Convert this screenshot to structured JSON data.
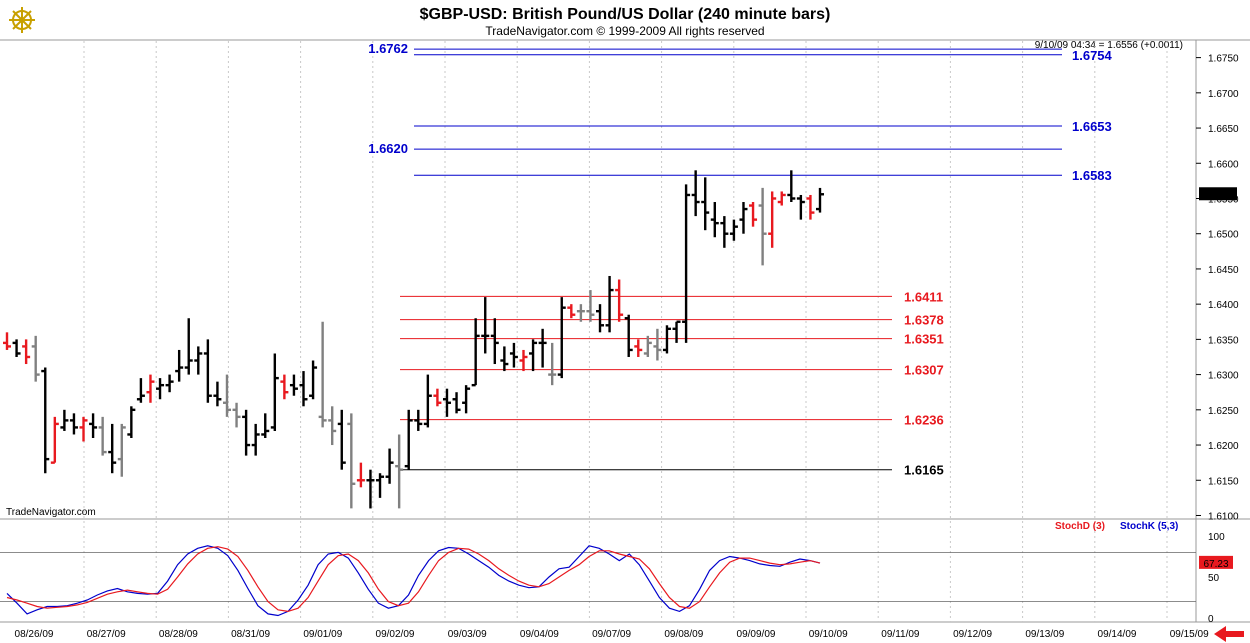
{
  "header": {
    "title": "$GBP-USD:  British Pound/US Dollar  (240 minute bars)",
    "subtitle": "TradeNavigator.com © 1999-2009 All rights reserved"
  },
  "readout": "9/10/09 04:34 = 1.6556 (+0.0011)",
  "watermark": "TradeNavigator.com",
  "logo_icon": "ship-wheel-icon",
  "scroll_icon": "arrow-left-icon",
  "colors": {
    "up_bar": "#000000",
    "down_bar": "#e8191f",
    "neutral_bar": "#808080",
    "blue_level": "#0000cc",
    "red_level": "#e8191f",
    "stoch_d": "#e8191f",
    "stoch_k": "#0000cc",
    "grid": "#c8c8c8"
  },
  "chart_data": [
    {
      "type": "ohlc",
      "x_axis_dates": [
        "08/26/09",
        "08/27/09",
        "08/28/09",
        "08/31/09",
        "09/01/09",
        "09/02/09",
        "09/03/09",
        "09/04/09",
        "09/07/09",
        "09/08/09",
        "09/09/09",
        "09/10/09",
        "09/11/09",
        "09/12/09",
        "09/13/09",
        "09/14/09",
        "09/15/09"
      ],
      "ylim": [
        1.6095,
        1.6775
      ],
      "y_ticks": [
        1.61,
        1.615,
        1.62,
        1.625,
        1.63,
        1.635,
        1.64,
        1.645,
        1.65,
        1.655,
        1.66,
        1.665,
        1.67,
        1.675
      ],
      "last_price": "1.6556",
      "bars": [
        {
          "o": 1.6345,
          "h": 1.636,
          "l": 1.6335,
          "c": 1.634,
          "col": "r"
        },
        {
          "o": 1.6345,
          "h": 1.635,
          "l": 1.6325,
          "c": 1.633,
          "col": "k"
        },
        {
          "o": 1.634,
          "h": 1.635,
          "l": 1.6315,
          "c": 1.6325,
          "col": "r"
        },
        {
          "o": 1.634,
          "h": 1.6355,
          "l": 1.629,
          "c": 1.63,
          "col": "g"
        },
        {
          "o": 1.6305,
          "h": 1.631,
          "l": 1.616,
          "c": 1.618,
          "col": "k"
        },
        {
          "o": 1.6175,
          "h": 1.624,
          "l": 1.6175,
          "c": 1.623,
          "col": "r"
        },
        {
          "o": 1.6225,
          "h": 1.625,
          "l": 1.622,
          "c": 1.6235,
          "col": "k"
        },
        {
          "o": 1.6235,
          "h": 1.6245,
          "l": 1.6215,
          "c": 1.6225,
          "col": "k"
        },
        {
          "o": 1.6225,
          "h": 1.624,
          "l": 1.6205,
          "c": 1.6235,
          "col": "r"
        },
        {
          "o": 1.623,
          "h": 1.6245,
          "l": 1.621,
          "c": 1.6225,
          "col": "k"
        },
        {
          "o": 1.6225,
          "h": 1.624,
          "l": 1.6185,
          "c": 1.619,
          "col": "g"
        },
        {
          "o": 1.619,
          "h": 1.623,
          "l": 1.616,
          "c": 1.6175,
          "col": "k"
        },
        {
          "o": 1.618,
          "h": 1.623,
          "l": 1.6155,
          "c": 1.6225,
          "col": "g"
        },
        {
          "o": 1.6215,
          "h": 1.6255,
          "l": 1.621,
          "c": 1.625,
          "col": "k"
        },
        {
          "o": 1.6265,
          "h": 1.6295,
          "l": 1.626,
          "c": 1.627,
          "col": "k"
        },
        {
          "o": 1.6275,
          "h": 1.63,
          "l": 1.626,
          "c": 1.629,
          "col": "r"
        },
        {
          "o": 1.628,
          "h": 1.6295,
          "l": 1.6265,
          "c": 1.6285,
          "col": "k"
        },
        {
          "o": 1.6285,
          "h": 1.63,
          "l": 1.6275,
          "c": 1.629,
          "col": "k"
        },
        {
          "o": 1.6305,
          "h": 1.6335,
          "l": 1.629,
          "c": 1.631,
          "col": "k"
        },
        {
          "o": 1.631,
          "h": 1.638,
          "l": 1.63,
          "c": 1.632,
          "col": "k"
        },
        {
          "o": 1.632,
          "h": 1.634,
          "l": 1.63,
          "c": 1.633,
          "col": "k"
        },
        {
          "o": 1.633,
          "h": 1.635,
          "l": 1.626,
          "c": 1.627,
          "col": "k"
        },
        {
          "o": 1.627,
          "h": 1.629,
          "l": 1.6255,
          "c": 1.6265,
          "col": "k"
        },
        {
          "o": 1.626,
          "h": 1.63,
          "l": 1.624,
          "c": 1.625,
          "col": "g"
        },
        {
          "o": 1.625,
          "h": 1.626,
          "l": 1.6225,
          "c": 1.624,
          "col": "g"
        },
        {
          "o": 1.624,
          "h": 1.625,
          "l": 1.6185,
          "c": 1.62,
          "col": "k"
        },
        {
          "o": 1.62,
          "h": 1.623,
          "l": 1.6185,
          "c": 1.6215,
          "col": "k"
        },
        {
          "o": 1.6215,
          "h": 1.6245,
          "l": 1.621,
          "c": 1.622,
          "col": "k"
        },
        {
          "o": 1.6225,
          "h": 1.633,
          "l": 1.622,
          "c": 1.6295,
          "col": "k"
        },
        {
          "o": 1.629,
          "h": 1.63,
          "l": 1.6265,
          "c": 1.6275,
          "col": "r"
        },
        {
          "o": 1.6285,
          "h": 1.63,
          "l": 1.627,
          "c": 1.628,
          "col": "k"
        },
        {
          "o": 1.6285,
          "h": 1.6305,
          "l": 1.6255,
          "c": 1.6265,
          "col": "k"
        },
        {
          "o": 1.627,
          "h": 1.632,
          "l": 1.6265,
          "c": 1.631,
          "col": "k"
        },
        {
          "o": 1.624,
          "h": 1.6375,
          "l": 1.6225,
          "c": 1.6235,
          "col": "g"
        },
        {
          "o": 1.6235,
          "h": 1.6255,
          "l": 1.62,
          "c": 1.622,
          "col": "g"
        },
        {
          "o": 1.623,
          "h": 1.625,
          "l": 1.6165,
          "c": 1.6175,
          "col": "k"
        },
        {
          "o": 1.623,
          "h": 1.6245,
          "l": 1.611,
          "c": 1.6145,
          "col": "g"
        },
        {
          "o": 1.615,
          "h": 1.6175,
          "l": 1.614,
          "c": 1.615,
          "col": "r"
        },
        {
          "o": 1.615,
          "h": 1.6165,
          "l": 1.611,
          "c": 1.615,
          "col": "k"
        },
        {
          "o": 1.615,
          "h": 1.616,
          "l": 1.6125,
          "c": 1.6155,
          "col": "k"
        },
        {
          "o": 1.6155,
          "h": 1.6195,
          "l": 1.6145,
          "c": 1.6175,
          "col": "k"
        },
        {
          "o": 1.617,
          "h": 1.6215,
          "l": 1.611,
          "c": 1.6165,
          "col": "g"
        },
        {
          "o": 1.617,
          "h": 1.625,
          "l": 1.6165,
          "c": 1.6235,
          "col": "k"
        },
        {
          "o": 1.6235,
          "h": 1.625,
          "l": 1.622,
          "c": 1.623,
          "col": "k"
        },
        {
          "o": 1.623,
          "h": 1.63,
          "l": 1.6225,
          "c": 1.627,
          "col": "k"
        },
        {
          "o": 1.627,
          "h": 1.628,
          "l": 1.6255,
          "c": 1.626,
          "col": "r"
        },
        {
          "o": 1.6265,
          "h": 1.628,
          "l": 1.624,
          "c": 1.626,
          "col": "k"
        },
        {
          "o": 1.6265,
          "h": 1.6275,
          "l": 1.6245,
          "c": 1.625,
          "col": "k"
        },
        {
          "o": 1.626,
          "h": 1.6285,
          "l": 1.6245,
          "c": 1.628,
          "col": "k"
        },
        {
          "o": 1.6285,
          "h": 1.638,
          "l": 1.6285,
          "c": 1.6355,
          "col": "k"
        },
        {
          "o": 1.6355,
          "h": 1.641,
          "l": 1.633,
          "c": 1.6355,
          "col": "k"
        },
        {
          "o": 1.6355,
          "h": 1.638,
          "l": 1.6315,
          "c": 1.6345,
          "col": "k"
        },
        {
          "o": 1.632,
          "h": 1.634,
          "l": 1.6305,
          "c": 1.6315,
          "col": "k"
        },
        {
          "o": 1.633,
          "h": 1.6345,
          "l": 1.631,
          "c": 1.6325,
          "col": "k"
        },
        {
          "o": 1.632,
          "h": 1.6335,
          "l": 1.6305,
          "c": 1.6325,
          "col": "r"
        },
        {
          "o": 1.633,
          "h": 1.635,
          "l": 1.6305,
          "c": 1.6345,
          "col": "k"
        },
        {
          "o": 1.6345,
          "h": 1.6365,
          "l": 1.631,
          "c": 1.6345,
          "col": "k"
        },
        {
          "o": 1.63,
          "h": 1.6345,
          "l": 1.6285,
          "c": 1.63,
          "col": "g"
        },
        {
          "o": 1.63,
          "h": 1.641,
          "l": 1.6295,
          "c": 1.6395,
          "col": "k"
        },
        {
          "o": 1.6395,
          "h": 1.64,
          "l": 1.638,
          "c": 1.6385,
          "col": "r"
        },
        {
          "o": 1.639,
          "h": 1.64,
          "l": 1.6375,
          "c": 1.639,
          "col": "g"
        },
        {
          "o": 1.639,
          "h": 1.642,
          "l": 1.6375,
          "c": 1.6385,
          "col": "g"
        },
        {
          "o": 1.639,
          "h": 1.64,
          "l": 1.636,
          "c": 1.637,
          "col": "k"
        },
        {
          "o": 1.637,
          "h": 1.644,
          "l": 1.636,
          "c": 1.642,
          "col": "k"
        },
        {
          "o": 1.642,
          "h": 1.6435,
          "l": 1.6375,
          "c": 1.6385,
          "col": "r"
        },
        {
          "o": 1.638,
          "h": 1.6385,
          "l": 1.6325,
          "c": 1.6335,
          "col": "k"
        },
        {
          "o": 1.634,
          "h": 1.635,
          "l": 1.6325,
          "c": 1.6335,
          "col": "r"
        },
        {
          "o": 1.633,
          "h": 1.6355,
          "l": 1.6325,
          "c": 1.6345,
          "col": "g"
        },
        {
          "o": 1.634,
          "h": 1.6365,
          "l": 1.632,
          "c": 1.6335,
          "col": "g"
        },
        {
          "o": 1.6335,
          "h": 1.637,
          "l": 1.633,
          "c": 1.6365,
          "col": "k"
        },
        {
          "o": 1.6365,
          "h": 1.6375,
          "l": 1.6345,
          "c": 1.6375,
          "col": "k"
        },
        {
          "o": 1.6375,
          "h": 1.657,
          "l": 1.6345,
          "c": 1.6555,
          "col": "k"
        },
        {
          "o": 1.6555,
          "h": 1.659,
          "l": 1.6525,
          "c": 1.6545,
          "col": "k"
        },
        {
          "o": 1.6545,
          "h": 1.658,
          "l": 1.6505,
          "c": 1.653,
          "col": "k"
        },
        {
          "o": 1.652,
          "h": 1.6545,
          "l": 1.6495,
          "c": 1.6515,
          "col": "k"
        },
        {
          "o": 1.6515,
          "h": 1.6525,
          "l": 1.648,
          "c": 1.65,
          "col": "k"
        },
        {
          "o": 1.65,
          "h": 1.652,
          "l": 1.649,
          "c": 1.651,
          "col": "k"
        },
        {
          "o": 1.652,
          "h": 1.6545,
          "l": 1.65,
          "c": 1.6535,
          "col": "k"
        },
        {
          "o": 1.654,
          "h": 1.6545,
          "l": 1.651,
          "c": 1.652,
          "col": "r"
        },
        {
          "o": 1.654,
          "h": 1.6565,
          "l": 1.6455,
          "c": 1.65,
          "col": "g"
        },
        {
          "o": 1.65,
          "h": 1.656,
          "l": 1.648,
          "c": 1.655,
          "col": "r"
        },
        {
          "o": 1.6545,
          "h": 1.656,
          "l": 1.654,
          "c": 1.6555,
          "col": "r"
        },
        {
          "o": 1.6555,
          "h": 1.659,
          "l": 1.6545,
          "c": 1.655,
          "col": "k"
        },
        {
          "o": 1.655,
          "h": 1.6555,
          "l": 1.652,
          "c": 1.6545,
          "col": "k"
        },
        {
          "o": 1.655,
          "h": 1.6555,
          "l": 1.652,
          "c": 1.653,
          "col": "r"
        },
        {
          "o": 1.6535,
          "h": 1.6565,
          "l": 1.653,
          "c": 1.6556,
          "col": "k"
        }
      ],
      "levels": [
        {
          "value": "1.6762",
          "color": "blue",
          "label_side": "left"
        },
        {
          "value": "1.6754",
          "color": "blue",
          "label_side": "right"
        },
        {
          "value": "1.6653",
          "color": "blue",
          "label_side": "right"
        },
        {
          "value": "1.6620",
          "color": "blue",
          "label_side": "left"
        },
        {
          "value": "1.6583",
          "color": "blue",
          "label_side": "right"
        },
        {
          "value": "1.6411",
          "color": "red",
          "label_side": "right"
        },
        {
          "value": "1.6378",
          "color": "red",
          "label_side": "right"
        },
        {
          "value": "1.6351",
          "color": "red",
          "label_side": "right"
        },
        {
          "value": "1.6307",
          "color": "red",
          "label_side": "right"
        },
        {
          "value": "1.6236",
          "color": "red",
          "label_side": "right"
        },
        {
          "value": "1.6165",
          "color": "black",
          "label_side": "right"
        }
      ]
    },
    {
      "type": "line",
      "legend": [
        "StochD (3)",
        "StochK (5,3)"
      ],
      "ylim": [
        0,
        100
      ],
      "y_ticks": [
        0,
        50,
        100
      ],
      "reference_lines": [
        20,
        80
      ],
      "last_value": "67.23",
      "series": [
        {
          "name": "StochK (5,3)",
          "values": [
            30,
            18,
            5,
            10,
            14,
            14,
            15,
            18,
            22,
            28,
            33,
            36,
            32,
            30,
            29,
            30,
            45,
            65,
            78,
            85,
            88,
            85,
            76,
            58,
            36,
            15,
            5,
            3,
            8,
            22,
            40,
            65,
            78,
            80,
            73,
            55,
            35,
            18,
            12,
            15,
            28,
            52,
            70,
            82,
            86,
            85,
            78,
            70,
            62,
            52,
            45,
            40,
            37,
            38,
            50,
            60,
            62,
            75,
            88,
            85,
            78,
            70,
            78,
            65,
            45,
            25,
            12,
            8,
            15,
            35,
            58,
            70,
            75,
            73,
            70,
            66,
            64,
            63,
            68,
            72,
            70,
            67
          ]
        },
        {
          "name": "StochD (3)",
          "values": [
            25,
            22,
            18,
            14,
            12,
            13,
            14,
            16,
            19,
            24,
            29,
            32,
            34,
            32,
            30,
            29,
            35,
            50,
            66,
            78,
            85,
            87,
            84,
            75,
            58,
            38,
            20,
            10,
            8,
            12,
            25,
            45,
            65,
            76,
            78,
            70,
            55,
            35,
            20,
            15,
            18,
            32,
            52,
            70,
            80,
            85,
            84,
            78,
            70,
            60,
            52,
            45,
            40,
            38,
            42,
            50,
            58,
            65,
            75,
            82,
            82,
            78,
            75,
            72,
            60,
            42,
            25,
            14,
            12,
            20,
            38,
            55,
            68,
            73,
            73,
            70,
            67,
            65,
            66,
            68,
            70,
            67
          ]
        }
      ]
    }
  ]
}
